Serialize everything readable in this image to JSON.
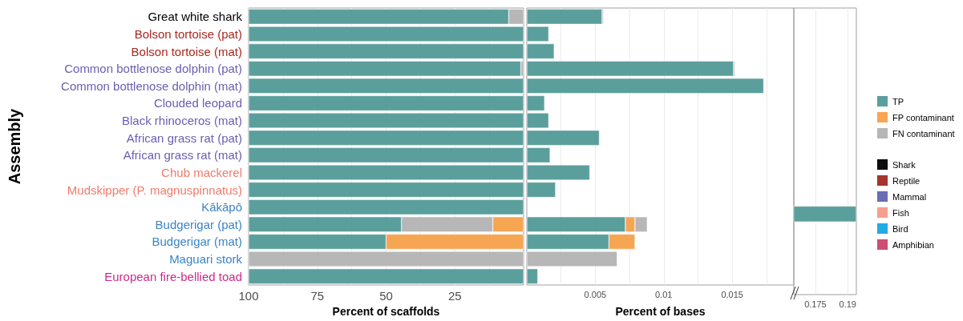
{
  "chart_data": [
    {
      "type": "bar",
      "orientation": "horizontal",
      "stacked": true,
      "xlabel": "Percent of scaffolds",
      "ylabel": "Assembly",
      "categories": [
        "Great white shark",
        "Bolson tortoise (pat)",
        "Bolson tortoise (mat)",
        "Common bottlenose dolphin (pat)",
        "Common bottlenose dolphin (mat)",
        "Clouded leopard",
        "Black rhinoceros (mat)",
        "African grass rat (pat)",
        "African grass rat (mat)",
        "Chub mackerel",
        "Mudskipper (P. magnuspinnatus)",
        "Kākāpō",
        "Budgerigar (pat)",
        "Budgerigar (mat)",
        "Maguari stork",
        "European fire-bellied toad"
      ],
      "series": [
        {
          "color": "#f5a04a",
          "values": [
            null,
            null,
            null,
            null,
            null,
            null,
            null,
            null,
            null,
            null,
            null,
            null,
            11.2,
            50,
            null,
            null
          ]
        },
        {
          "color": "#b3b3b3",
          "values": [
            5.4,
            null,
            null,
            1,
            null,
            null,
            null,
            null,
            null,
            null,
            null,
            null,
            33.2,
            null,
            100,
            null
          ]
        },
        {
          "color": "#529a98",
          "values": [
            94.6,
            100,
            100,
            99,
            100,
            100,
            100,
            100,
            100,
            100,
            100,
            100,
            55.6,
            50,
            null,
            100
          ]
        }
      ],
      "xlim": [
        100,
        0
      ],
      "xticks": [
        100,
        {
          "value": 87.5,
          "label": null
        },
        75,
        {
          "value": 62.5,
          "label": null
        },
        50,
        {
          "value": 37.5,
          "label": null
        },
        25,
        {
          "value": 12.5,
          "label": null
        }
      ],
      "grid": "x"
    },
    {
      "type": "bar",
      "orientation": "horizontal",
      "stacked": true,
      "xlabel": "Percent of bases",
      "tick_labels": "x",
      "legend": "right",
      "categories": [
        null,
        null,
        null,
        null,
        null,
        null,
        null,
        null,
        null,
        null,
        null,
        null,
        null,
        null,
        null,
        null
      ],
      "series": [
        {
          "name": "TP",
          "color": "#529a98",
          "values": [
            0.0055,
            0.0016,
            0.002,
            0.0151,
            0.0173,
            0.0013,
            0.0016,
            0.0053,
            0.0017,
            0.0046,
            0.0021,
            null,
            0.0072,
            0.006,
            null,
            0.0008
          ]
        },
        {
          "name": "FP contaminant",
          "color": "#f5a04a",
          "values": [
            null,
            null,
            null,
            null,
            null,
            null,
            null,
            null,
            null,
            null,
            null,
            null,
            0.0007,
            0.0019,
            null,
            null
          ]
        },
        {
          "name": "FN contaminant",
          "color": "#b3b3b3",
          "values": [
            0.0001,
            null,
            null,
            0.0001,
            null,
            null,
            null,
            null,
            null,
            null,
            null,
            null,
            0.0009,
            null,
            0.0066,
            null
          ]
        },
        {
          "name": "Shark",
          "color": "#000000",
          "values": [
            null,
            null,
            null,
            null,
            null,
            null,
            null,
            null,
            null,
            null,
            null,
            null,
            null,
            null,
            null,
            null
          ]
        },
        {
          "name": "Reptile",
          "color": "#9e2a22",
          "values": [
            null,
            null,
            null,
            null,
            null,
            null,
            null,
            null,
            null,
            null,
            null,
            null,
            null,
            null,
            null,
            null
          ]
        },
        {
          "name": "Mammal",
          "color": "#6366b0",
          "values": [
            null,
            null,
            null,
            null,
            null,
            null,
            null,
            null,
            null,
            null,
            null,
            null,
            null,
            null,
            null,
            null
          ]
        },
        {
          "name": "Fish",
          "color": "#f59a8a",
          "values": [
            null,
            null,
            null,
            null,
            null,
            null,
            null,
            null,
            null,
            null,
            null,
            null,
            null,
            null,
            null,
            null
          ]
        },
        {
          "name": "Bird",
          "color": "#16a8e2",
          "values": [
            null,
            null,
            null,
            null,
            null,
            null,
            null,
            null,
            null,
            null,
            null,
            null,
            null,
            null,
            null,
            null
          ]
        },
        {
          "name": "Amphibian",
          "color": "#c9446c",
          "values": [
            null,
            null,
            null,
            null,
            null,
            null,
            null,
            null,
            null,
            null,
            null,
            null,
            null,
            null,
            null,
            null
          ]
        }
      ],
      "xlim": [
        0,
        0.0195
      ],
      "xticks": [
        {
          "value": 0.0025,
          "label": null
        },
        0.005,
        {
          "value": 0.0075,
          "label": null
        },
        0.01,
        {
          "value": 0.0125,
          "label": null
        },
        0.015,
        {
          "value": 0.0175,
          "label": null
        }
      ],
      "grid": "x"
    },
    {
      "type": "bar",
      "orientation": "horizontal",
      "tick_labels": "x",
      "categories": [
        null,
        null,
        null,
        null,
        null,
        null,
        null,
        null,
        null,
        null,
        null,
        null,
        null,
        null,
        null,
        null
      ],
      "series": [
        {
          "color": "#529a98",
          "values": [
            null,
            null,
            null,
            null,
            null,
            null,
            null,
            null,
            null,
            null,
            null,
            0.194,
            null,
            null,
            null,
            null
          ]
        }
      ],
      "xlim": [
        0.165,
        0.194
      ],
      "xticks": [
        0.175,
        0.19
      ],
      "grid": "x"
    }
  ]
}
